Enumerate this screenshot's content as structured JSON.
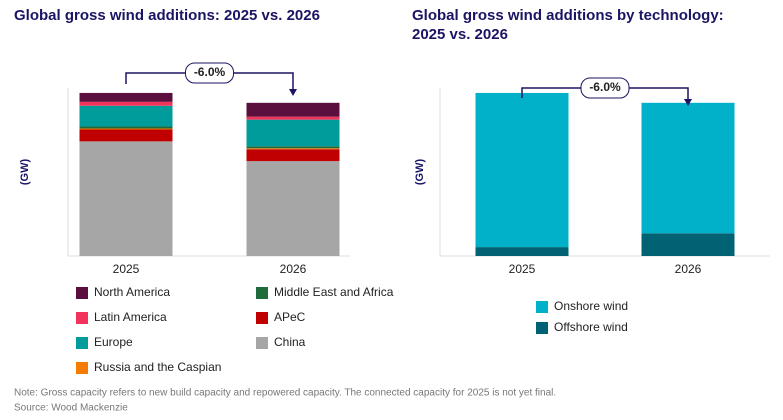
{
  "charts": [
    {
      "type": "bar",
      "stacked": true,
      "title": "Global gross wind additions: 2025 vs. 2026",
      "y_label": "(GW)",
      "annotation": "-6.0%",
      "categories": [
        "2025",
        "2026"
      ],
      "ylim": [
        0,
        170
      ],
      "series": [
        {
          "name": "North America",
          "color": "#5a0f3e",
          "values": [
            9,
            14
          ]
        },
        {
          "name": "Latin America",
          "color": "#f2345c",
          "values": [
            4,
            3
          ]
        },
        {
          "name": "Europe",
          "color": "#009b9b",
          "values": [
            21,
            27
          ]
        },
        {
          "name": "Russia and the Caspian",
          "color": "#f57c00",
          "values": [
            1,
            1
          ]
        },
        {
          "name": "Middle East and Africa",
          "color": "#1f6b3a",
          "values": [
            2,
            2
          ]
        },
        {
          "name": "APeC",
          "color": "#c00000",
          "values": [
            12,
            12
          ]
        },
        {
          "name": "China",
          "color": "#a6a6a6",
          "values": [
            116,
            96
          ]
        }
      ]
    },
    {
      "type": "bar",
      "stacked": true,
      "title": "Global gross wind additions by technology: 2025 vs. 2026",
      "y_label": "(GW)",
      "annotation": "-6.0%",
      "categories": [
        "2025",
        "2026"
      ],
      "ylim": [
        0,
        170
      ],
      "series": [
        {
          "name": "Onshore wind",
          "color": "#00b1c9",
          "values": [
            156,
            132
          ]
        },
        {
          "name": "Offshore wind",
          "color": "#006272",
          "values": [
            9,
            23
          ]
        }
      ]
    }
  ],
  "note": "Note: Gross capacity refers to new build capacity and repowered capacity. The connected capacity for 2025 is not yet final.",
  "source": "Source: Wood Mackenzie"
}
